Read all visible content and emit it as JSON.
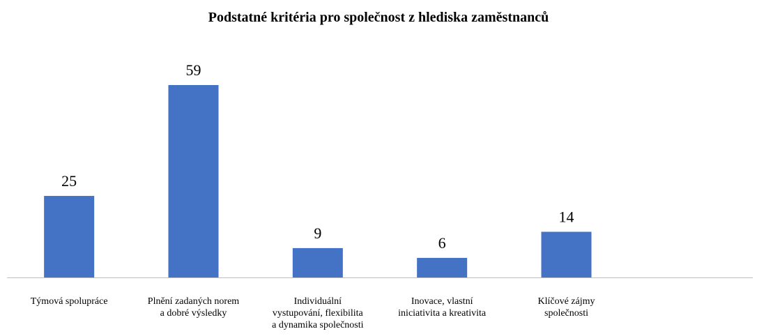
{
  "chart_data": {
    "type": "bar",
    "title": "Podstatné kritéria pro společnost z hlediska zaměstnanců",
    "categories": [
      "Týmová spolupráce",
      "Plnění zadaných norem\na dobré výsledky",
      "Individuální\nvystupování, flexibilita\na dynamika společnosti",
      "Inovace, vlastní\niniciativita a kreativita",
      "Klíčové zájmy\nspolečnosti"
    ],
    "values": [
      25,
      59,
      9,
      6,
      14
    ],
    "color": "#4472c4"
  }
}
